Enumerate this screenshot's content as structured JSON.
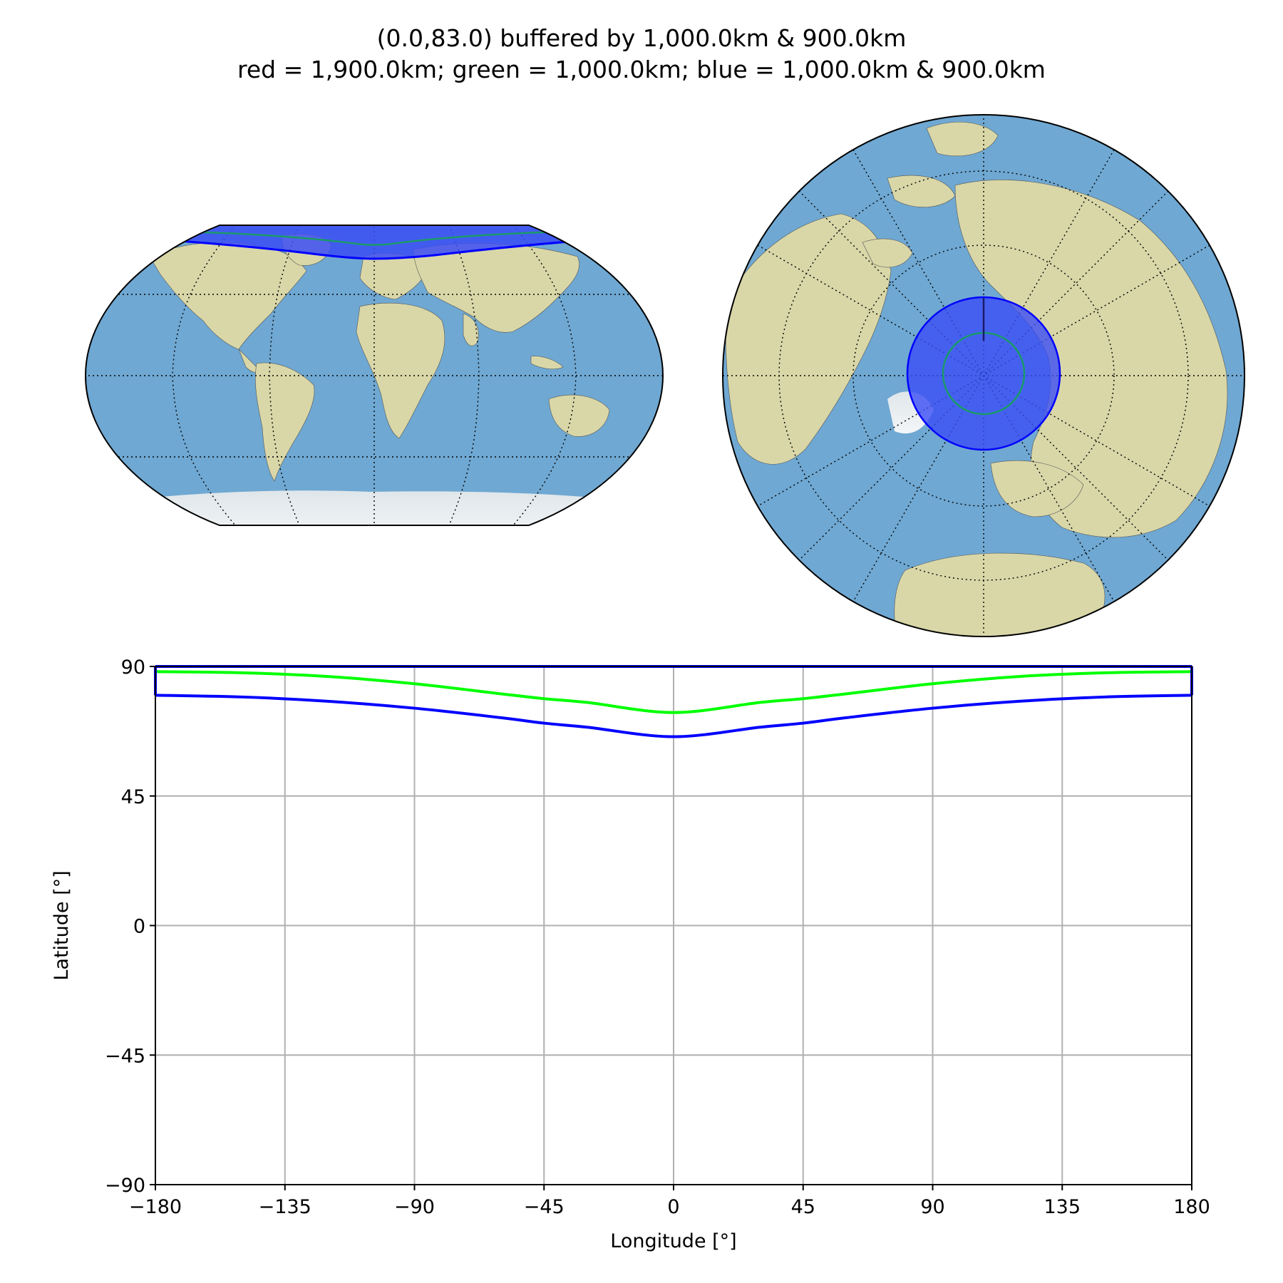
{
  "figure": {
    "title_line1": "(0.0,83.0) buffered by 1,000.0km & 900.0km",
    "title_line2": "red = 1,900.0km; green = 1,000.0km; blue = 1,000.0km & 900.0km"
  },
  "colors": {
    "ocean": "#6fa8d2",
    "land": "#d9d7a8",
    "ice": "#eef2f5",
    "buffer_fill": "#3b4ef5",
    "buffer_edge": "#0000ff",
    "green_line": "#00ff00",
    "green_map": "#1a9a6a",
    "grid": "#b0b0b0"
  },
  "maps": [
    {
      "name": "robinson-map",
      "projection": "robinson",
      "central_longitude": 0
    },
    {
      "name": "orthographic-map",
      "projection": "orthographic",
      "center_lat": 90,
      "center_lon": 0
    }
  ],
  "chart_data": {
    "type": "line",
    "xlabel": "Longitude [°]",
    "ylabel": "Latitude [°]",
    "xlim": [
      -180,
      180
    ],
    "ylim": [
      -90,
      90
    ],
    "xticks": [
      -180,
      -135,
      -90,
      -45,
      0,
      45,
      90,
      135,
      180
    ],
    "xtick_labels": [
      "−180",
      "−135",
      "−90",
      "−45",
      "0",
      "45",
      "90",
      "135",
      "180"
    ],
    "yticks": [
      90,
      45,
      0,
      -45,
      -90
    ],
    "ytick_labels": [
      "90",
      "45",
      "0",
      "−45",
      "−90"
    ],
    "grid": true,
    "series": [
      {
        "color": "#00ff00",
        "x": [
          -180,
          -150,
          -120,
          -90,
          -60,
          -45,
          -30,
          0,
          30,
          45,
          60,
          90,
          120,
          150,
          180
        ],
        "y": [
          88.2,
          87.8,
          86.5,
          84.0,
          80.5,
          78.8,
          77.5,
          74.0,
          77.5,
          78.8,
          80.5,
          84.0,
          86.5,
          87.8,
          88.2
        ]
      },
      {
        "color": "#0000ff",
        "x": [
          -180,
          -150,
          -120,
          -90,
          -60,
          -45,
          -30,
          0,
          30,
          45,
          60,
          90,
          120,
          150,
          180
        ],
        "y": [
          80.0,
          79.4,
          77.9,
          75.5,
          72.2,
          70.3,
          68.9,
          65.6,
          68.9,
          70.3,
          72.2,
          75.5,
          77.9,
          79.4,
          80.0
        ]
      },
      {
        "color": "#0000ff",
        "x": [
          -180,
          180
        ],
        "y": [
          90,
          90
        ]
      }
    ]
  }
}
